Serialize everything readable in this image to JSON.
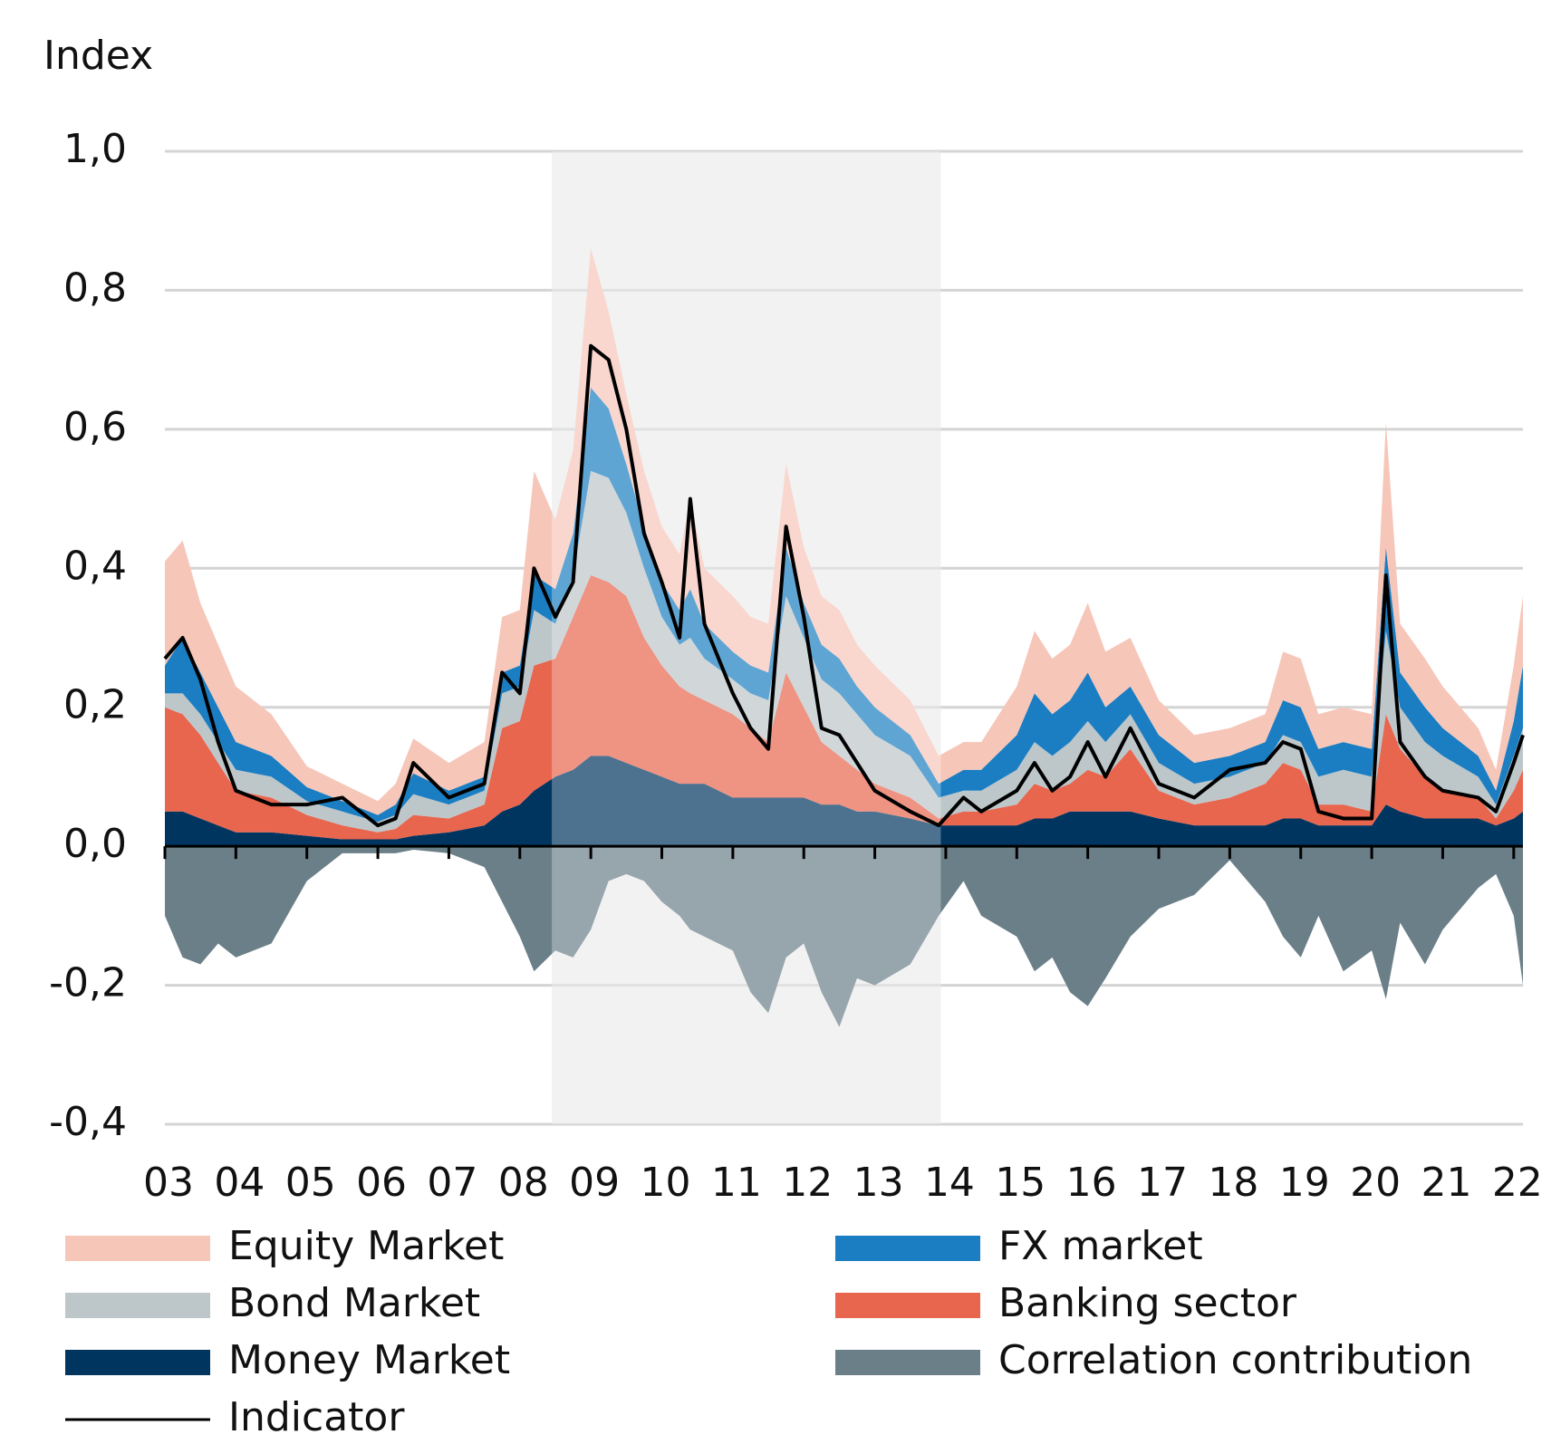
{
  "chart_data": {
    "type": "area",
    "title": "Index",
    "x": [
      3.0,
      3.25,
      3.5,
      3.75,
      4.0,
      4.5,
      5.0,
      5.5,
      6.0,
      6.25,
      6.5,
      7.0,
      7.5,
      7.75,
      8.0,
      8.2,
      8.5,
      8.75,
      9.0,
      9.25,
      9.5,
      9.75,
      10.0,
      10.25,
      10.4,
      10.6,
      11.0,
      11.25,
      11.5,
      11.75,
      12.0,
      12.25,
      12.5,
      12.75,
      13.0,
      13.5,
      13.9,
      14.25,
      14.5,
      15.0,
      15.25,
      15.5,
      15.75,
      16.0,
      16.25,
      16.6,
      17.0,
      17.5,
      18.0,
      18.5,
      18.75,
      19.0,
      19.25,
      19.6,
      20.0,
      20.2,
      20.4,
      20.75,
      21.0,
      21.5,
      21.75,
      22.0,
      22.13
    ],
    "xlim": [
      3,
      22.13
    ],
    "xticks": [
      {
        "value": 3,
        "label": "03"
      },
      {
        "value": 4,
        "label": "04"
      },
      {
        "value": 5,
        "label": "05"
      },
      {
        "value": 6,
        "label": "06"
      },
      {
        "value": 7,
        "label": "07"
      },
      {
        "value": 8,
        "label": "08"
      },
      {
        "value": 9,
        "label": "09"
      },
      10,
      11,
      12,
      13,
      14,
      15,
      16,
      17,
      18,
      19,
      20,
      21,
      22
    ],
    "ylim": [
      -0.4,
      1.0
    ],
    "yticks": [
      {
        "value": -0.4,
        "label": "-0,4"
      },
      {
        "value": -0.2,
        "label": "-0,2"
      },
      {
        "value": 0,
        "label": "0,0"
      },
      {
        "value": 0.2,
        "label": "0,2"
      },
      {
        "value": 0.4,
        "label": "0,4"
      },
      {
        "value": 0.6,
        "label": "0,6"
      },
      {
        "value": 0.8,
        "label": "0,8"
      },
      {
        "value": 1.0,
        "label": "1,0"
      }
    ],
    "grid": true,
    "shaded_range": [
      8.45,
      13.93
    ],
    "series": [
      {
        "name": "Money Market",
        "color": "#003560",
        "type": "area",
        "values": [
          0.05,
          0.05,
          0.04,
          0.03,
          0.02,
          0.02,
          0.015,
          0.01,
          0.01,
          0.01,
          0.015,
          0.02,
          0.03,
          0.05,
          0.06,
          0.08,
          0.1,
          0.11,
          0.13,
          0.13,
          0.12,
          0.11,
          0.1,
          0.09,
          0.09,
          0.09,
          0.07,
          0.07,
          0.07,
          0.07,
          0.07,
          0.06,
          0.06,
          0.05,
          0.05,
          0.04,
          0.03,
          0.03,
          0.03,
          0.03,
          0.04,
          0.04,
          0.05,
          0.05,
          0.05,
          0.05,
          0.04,
          0.03,
          0.03,
          0.03,
          0.04,
          0.04,
          0.03,
          0.03,
          0.03,
          0.06,
          0.05,
          0.04,
          0.04,
          0.04,
          0.03,
          0.04,
          0.05
        ]
      },
      {
        "name": "Banking sector",
        "color": "#e8654e",
        "type": "area",
        "values": [
          0.15,
          0.14,
          0.12,
          0.09,
          0.06,
          0.05,
          0.03,
          0.02,
          0.01,
          0.015,
          0.03,
          0.02,
          0.03,
          0.12,
          0.12,
          0.18,
          0.17,
          0.22,
          0.26,
          0.25,
          0.24,
          0.19,
          0.16,
          0.14,
          0.13,
          0.12,
          0.12,
          0.1,
          0.08,
          0.18,
          0.13,
          0.09,
          0.07,
          0.06,
          0.04,
          0.03,
          0.01,
          0.02,
          0.02,
          0.03,
          0.05,
          0.04,
          0.04,
          0.06,
          0.05,
          0.09,
          0.04,
          0.03,
          0.04,
          0.06,
          0.08,
          0.07,
          0.03,
          0.03,
          0.02,
          0.13,
          0.09,
          0.06,
          0.04,
          0.03,
          0.01,
          0.04,
          0.06
        ]
      },
      {
        "name": "Bond Market",
        "color": "#bdc6c9",
        "type": "area",
        "values": [
          0.02,
          0.03,
          0.03,
          0.03,
          0.03,
          0.03,
          0.02,
          0.02,
          0.015,
          0.02,
          0.03,
          0.02,
          0.02,
          0.05,
          0.05,
          0.08,
          0.05,
          0.06,
          0.15,
          0.15,
          0.12,
          0.1,
          0.07,
          0.06,
          0.08,
          0.06,
          0.05,
          0.05,
          0.06,
          0.11,
          0.1,
          0.09,
          0.09,
          0.08,
          0.07,
          0.06,
          0.03,
          0.03,
          0.03,
          0.05,
          0.06,
          0.05,
          0.06,
          0.07,
          0.05,
          0.05,
          0.04,
          0.03,
          0.03,
          0.03,
          0.04,
          0.04,
          0.04,
          0.05,
          0.05,
          0.12,
          0.06,
          0.05,
          0.05,
          0.03,
          0.02,
          0.05,
          0.06
        ]
      },
      {
        "name": "FX market",
        "color": "#1b7ec2",
        "type": "area",
        "values": [
          0.04,
          0.08,
          0.06,
          0.05,
          0.04,
          0.03,
          0.02,
          0.015,
          0.01,
          0.015,
          0.03,
          0.02,
          0.02,
          0.03,
          0.03,
          0.05,
          0.05,
          0.06,
          0.12,
          0.1,
          0.07,
          0.06,
          0.05,
          0.05,
          0.07,
          0.05,
          0.04,
          0.04,
          0.04,
          0.07,
          0.05,
          0.05,
          0.05,
          0.04,
          0.04,
          0.03,
          0.02,
          0.03,
          0.03,
          0.05,
          0.07,
          0.06,
          0.06,
          0.07,
          0.05,
          0.04,
          0.04,
          0.03,
          0.03,
          0.03,
          0.05,
          0.05,
          0.04,
          0.04,
          0.04,
          0.12,
          0.05,
          0.05,
          0.04,
          0.03,
          0.02,
          0.05,
          0.09
        ]
      },
      {
        "name": "Equity Market",
        "color": "#f6c6b9",
        "type": "area",
        "values": [
          0.15,
          0.14,
          0.1,
          0.09,
          0.08,
          0.06,
          0.03,
          0.025,
          0.02,
          0.03,
          0.05,
          0.04,
          0.05,
          0.08,
          0.08,
          0.15,
          0.1,
          0.12,
          0.2,
          0.14,
          0.1,
          0.08,
          0.08,
          0.08,
          0.13,
          0.08,
          0.08,
          0.07,
          0.07,
          0.12,
          0.08,
          0.07,
          0.07,
          0.06,
          0.06,
          0.05,
          0.04,
          0.04,
          0.04,
          0.07,
          0.09,
          0.08,
          0.08,
          0.1,
          0.08,
          0.07,
          0.05,
          0.04,
          0.04,
          0.04,
          0.07,
          0.07,
          0.05,
          0.05,
          0.05,
          0.18,
          0.07,
          0.07,
          0.06,
          0.04,
          0.03,
          0.08,
          0.1
        ]
      },
      {
        "name": "Correlation contribution",
        "color": "#6b7f88",
        "type": "area",
        "values": [
          -0.1,
          -0.16,
          -0.17,
          -0.14,
          -0.16,
          -0.14,
          -0.05,
          -0.01,
          -0.01,
          -0.01,
          -0.005,
          -0.01,
          -0.03,
          -0.08,
          -0.13,
          -0.18,
          -0.15,
          -0.16,
          -0.12,
          -0.05,
          -0.04,
          -0.05,
          -0.08,
          -0.1,
          -0.12,
          -0.13,
          -0.15,
          -0.21,
          -0.24,
          -0.16,
          -0.14,
          -0.21,
          -0.26,
          -0.19,
          -0.2,
          -0.17,
          -0.1,
          -0.05,
          -0.1,
          -0.13,
          -0.18,
          -0.16,
          -0.21,
          -0.23,
          -0.19,
          -0.13,
          -0.09,
          -0.07,
          -0.02,
          -0.08,
          -0.13,
          -0.16,
          -0.1,
          -0.18,
          -0.15,
          -0.22,
          -0.11,
          -0.17,
          -0.12,
          -0.06,
          -0.04,
          -0.1,
          -0.2
        ]
      },
      {
        "name": "Indicator",
        "color": "#000000",
        "type": "line",
        "values": [
          0.27,
          0.3,
          0.24,
          0.15,
          0.08,
          0.06,
          0.06,
          0.07,
          0.03,
          0.04,
          0.12,
          0.07,
          0.09,
          0.25,
          0.22,
          0.4,
          0.33,
          0.38,
          0.72,
          0.7,
          0.6,
          0.45,
          0.38,
          0.3,
          0.5,
          0.32,
          0.22,
          0.17,
          0.14,
          0.46,
          0.33,
          0.17,
          0.16,
          0.12,
          0.08,
          0.05,
          0.03,
          0.07,
          0.05,
          0.08,
          0.12,
          0.08,
          0.1,
          0.15,
          0.1,
          0.17,
          0.09,
          0.07,
          0.11,
          0.12,
          0.15,
          0.14,
          0.05,
          0.04,
          0.04,
          0.39,
          0.15,
          0.1,
          0.08,
          0.07,
          0.05,
          0.12,
          0.16
        ]
      }
    ]
  }
}
